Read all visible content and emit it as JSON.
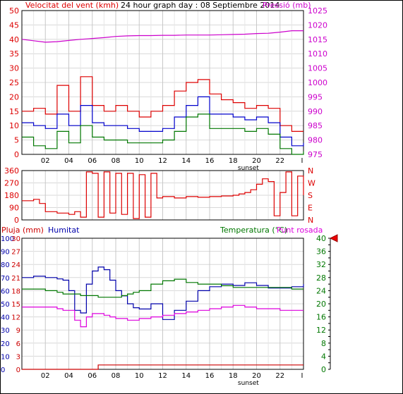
{
  "title": "24 hour graph day : 08 Septiembre 2014",
  "colors": {
    "wind": "#dd0000",
    "wind_avg": "#0000cc",
    "wind_low": "#007700",
    "pressure": "#cc00cc",
    "direction": "#dd0000",
    "humidity": "#0000aa",
    "temperature": "#007700",
    "dewpoint": "#dd00dd",
    "rain": "#cc0000",
    "grid": "#d8d8d8",
    "marker": "#ee0000"
  },
  "x_ticks": [
    "02",
    "04",
    "06",
    "08",
    "10",
    "12",
    "14",
    "16",
    "18",
    "20",
    "22",
    "I"
  ],
  "sunset_label": "sunset",
  "chart_data": [
    {
      "id": "wind",
      "type": "line",
      "title": "24 hour graph day : 08 Septiembre 2014",
      "left_label": "Velocitat del vent (kmh)",
      "right_label": "Pressió (mb)",
      "left_ticks": [
        "0",
        "5",
        "10",
        "15",
        "20",
        "25",
        "30",
        "35",
        "40",
        "45",
        "50"
      ],
      "right_ticks": [
        "975",
        "980",
        "985",
        "990",
        "995",
        "1000",
        "1005",
        "1010",
        "1015",
        "1020",
        "1025"
      ],
      "ylim": [
        0,
        50
      ],
      "y2lim": [
        975,
        1025
      ],
      "x": [
        0,
        1,
        2,
        3,
        4,
        5,
        6,
        7,
        8,
        9,
        10,
        11,
        12,
        13,
        14,
        15,
        16,
        17,
        18,
        19,
        20,
        21,
        22,
        23,
        24
      ],
      "series": [
        {
          "name": "gust",
          "axis": "left",
          "values": [
            15,
            16,
            14,
            24,
            15,
            27,
            17,
            15,
            17,
            15,
            13,
            15,
            17,
            22,
            25,
            26,
            21,
            19,
            18,
            16,
            17,
            16,
            10,
            8,
            8
          ]
        },
        {
          "name": "average",
          "axis": "left",
          "values": [
            11,
            10,
            9,
            14,
            10,
            17,
            11,
            10,
            10,
            9,
            8,
            8,
            9,
            13,
            17,
            20,
            14,
            14,
            13,
            12,
            13,
            11,
            6,
            3,
            4
          ]
        },
        {
          "name": "low",
          "axis": "left",
          "values": [
            6,
            3,
            2,
            8,
            4,
            10,
            6,
            5,
            5,
            4,
            4,
            4,
            5,
            8,
            13,
            14,
            9,
            9,
            9,
            8,
            9,
            7,
            2,
            0,
            1
          ]
        },
        {
          "name": "pressure",
          "axis": "right",
          "values": [
            1015,
            1014.5,
            1014,
            1014.2,
            1014.6,
            1015,
            1015.3,
            1015.6,
            1016,
            1016.2,
            1016.3,
            1016.3,
            1016.4,
            1016.4,
            1016.5,
            1016.5,
            1016.5,
            1016.6,
            1016.7,
            1016.8,
            1017,
            1017.1,
            1017.5,
            1018,
            1018
          ]
        }
      ]
    },
    {
      "id": "direction",
      "type": "line",
      "left_ticks": [
        "0",
        "90",
        "180",
        "270",
        "360"
      ],
      "right_ticks": [
        "N",
        "E",
        "S",
        "W",
        "N"
      ],
      "ylim": [
        0,
        360
      ],
      "x": [
        0,
        1,
        1.5,
        2,
        3,
        4,
        4.5,
        5,
        5.5,
        6,
        6.5,
        7,
        7.5,
        8,
        8.5,
        9,
        9.5,
        10,
        10.5,
        11,
        11.5,
        12,
        13,
        14,
        15,
        16,
        17,
        18,
        18.5,
        19,
        19.5,
        20,
        20.5,
        21,
        21.5,
        22,
        22.5,
        23,
        23.5,
        24
      ],
      "series": [
        {
          "name": "direction",
          "values": [
            140,
            150,
            120,
            60,
            50,
            40,
            60,
            20,
            350,
            340,
            20,
            350,
            50,
            340,
            40,
            340,
            10,
            330,
            20,
            340,
            160,
            170,
            160,
            170,
            165,
            170,
            175,
            180,
            190,
            200,
            220,
            260,
            300,
            280,
            30,
            200,
            350,
            30,
            320,
            180
          ]
        }
      ]
    },
    {
      "id": "temp",
      "type": "line",
      "left_label": "Pluja (mm)",
      "left2_label": "Humitat",
      "right_label": "Temperatura (°C)",
      "right2_label": "Punt rosada",
      "left_ticks": [
        "0",
        "10",
        "20",
        "30",
        "40",
        "50",
        "60",
        "70",
        "80",
        "90",
        "100"
      ],
      "left2_ticks": [
        "0",
        "3",
        "6",
        "9",
        "12",
        "15",
        "18",
        "21",
        "24",
        "27",
        "30"
      ],
      "right_ticks": [
        "0",
        "4",
        "8",
        "12",
        "16",
        "20",
        "24",
        "28",
        "32",
        "36",
        "40"
      ],
      "ylim": [
        0,
        30
      ],
      "y2lim": [
        0,
        100
      ],
      "y3lim": [
        0,
        40
      ],
      "current_temperature": 40,
      "x": [
        0,
        1,
        2,
        3,
        3.5,
        4,
        4.5,
        5,
        5.5,
        6,
        6.5,
        7,
        7.5,
        8,
        8.5,
        9,
        9.5,
        10,
        11,
        12,
        13,
        14,
        15,
        16,
        17,
        18,
        19,
        20,
        21,
        22,
        23,
        24
      ],
      "series": [
        {
          "name": "humitat",
          "axis": "left2",
          "values": [
            70,
            71,
            70,
            69,
            68,
            60,
            45,
            43,
            65,
            75,
            78,
            76,
            68,
            60,
            56,
            50,
            47,
            46,
            50,
            38,
            45,
            52,
            60,
            63,
            65,
            64,
            66,
            64,
            62,
            62,
            63,
            65
          ]
        },
        {
          "name": "temperatura",
          "axis": "right",
          "values": [
            24.5,
            24.5,
            24,
            23.5,
            23,
            23,
            23,
            22.5,
            22.5,
            22.5,
            22,
            22,
            22,
            22,
            22.5,
            23,
            23.5,
            24,
            26,
            27,
            27.5,
            26.5,
            26,
            26,
            25.5,
            25,
            25,
            25,
            25,
            25,
            24.5,
            24.5
          ]
        },
        {
          "name": "punt_rosada",
          "axis": "right",
          "values": [
            19,
            19,
            19,
            18.5,
            18,
            18,
            15,
            13,
            16,
            17,
            17,
            16.5,
            16,
            15.5,
            15.5,
            15,
            15,
            15.5,
            16,
            16.5,
            17,
            17.5,
            18,
            18.5,
            19,
            19.5,
            19,
            18.5,
            18.5,
            18,
            18,
            18
          ]
        },
        {
          "name": "pluja",
          "axis": "left",
          "values": [
            0,
            0,
            0,
            0,
            0,
            0,
            0,
            0,
            0,
            0,
            1,
            1,
            1,
            1,
            1,
            1,
            1,
            1,
            1,
            1,
            1,
            1,
            1,
            1,
            1,
            1,
            1,
            1,
            1,
            1,
            1,
            1
          ]
        }
      ]
    }
  ]
}
